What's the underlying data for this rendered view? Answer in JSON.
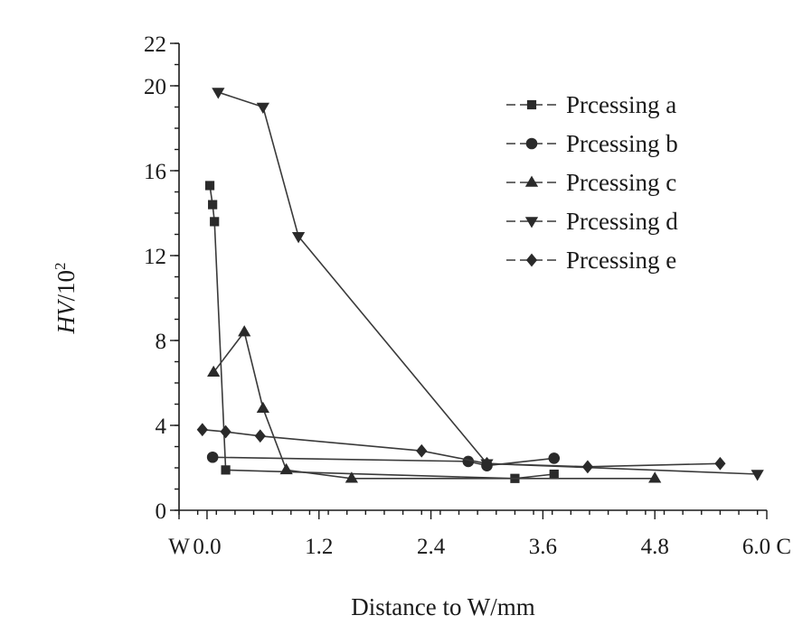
{
  "chart_data": {
    "type": "line",
    "xlabel": "Distance to W/mm",
    "ylabel_main": "HV",
    "ylabel_sep": "/",
    "ylabel_base": "10",
    "ylabel_exp": "2",
    "xlim": [
      -0.3,
      6.0
    ],
    "ylim": [
      0,
      22
    ],
    "x_ticks": [
      {
        "value": -0.3,
        "label": "W"
      },
      {
        "value": 0.0,
        "label": "0.0"
      },
      {
        "value": 1.2,
        "label": "1.2"
      },
      {
        "value": 2.4,
        "label": "2.4"
      },
      {
        "value": 3.6,
        "label": "3.6"
      },
      {
        "value": 4.8,
        "label": "4.8"
      },
      {
        "value": 6.0,
        "label": "6.0 C"
      }
    ],
    "x_minor_step": 0.2,
    "y_ticks": [
      {
        "value": 0,
        "label": "0"
      },
      {
        "value": 4,
        "label": "4"
      },
      {
        "value": 8,
        "label": "8"
      },
      {
        "value": 12,
        "label": "12"
      },
      {
        "value": 16,
        "label": "16"
      },
      {
        "value": 20,
        "label": "20"
      },
      {
        "value": 22,
        "label": "22"
      }
    ],
    "y_minor_step": 1,
    "legend_position": "top-right",
    "series": [
      {
        "name": "Prcessing a",
        "marker": "square",
        "x": [
          0.03,
          0.06,
          0.08,
          0.2,
          3.3,
          3.72
        ],
        "y": [
          15.3,
          14.4,
          13.6,
          1.9,
          1.5,
          1.7
        ]
      },
      {
        "name": "Prcessing b",
        "marker": "circle",
        "x": [
          0.06,
          2.8,
          3.0,
          3.72
        ],
        "y": [
          2.5,
          2.3,
          2.1,
          2.45
        ]
      },
      {
        "name": "Prcessing c",
        "marker": "triangle-up",
        "x": [
          0.07,
          0.4,
          0.6,
          0.85,
          1.55,
          4.8
        ],
        "y": [
          6.5,
          8.4,
          4.8,
          1.9,
          1.5,
          1.5
        ]
      },
      {
        "name": "Prcessing d",
        "marker": "triangle-down",
        "x": [
          0.12,
          0.6,
          0.98,
          3.0,
          5.9
        ],
        "y": [
          19.7,
          19.0,
          12.9,
          2.2,
          1.7
        ]
      },
      {
        "name": "Prcessing e",
        "marker": "diamond",
        "x": [
          -0.05,
          0.2,
          0.57,
          2.3,
          3.0,
          4.08,
          5.5
        ],
        "y": [
          3.8,
          3.7,
          3.5,
          2.8,
          2.2,
          2.05,
          2.2
        ]
      }
    ]
  }
}
